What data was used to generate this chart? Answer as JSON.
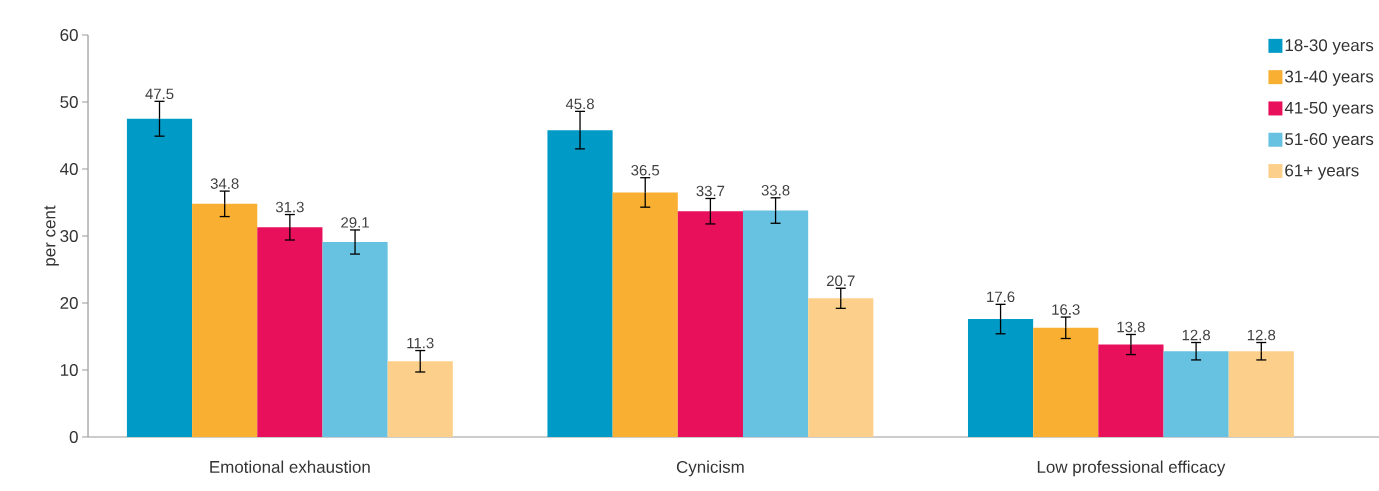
{
  "chart_data": {
    "type": "bar",
    "ylabel": "per cent",
    "categories": [
      "Emotional exhaustion",
      "Cynicism",
      "Low professional efficacy"
    ],
    "series": [
      {
        "name": "18-30 years",
        "color": "#009ac7",
        "values": [
          47.5,
          45.8,
          17.6
        ],
        "errors": [
          2.6,
          2.8,
          2.2
        ]
      },
      {
        "name": "31-40 years",
        "color": "#f9b032",
        "values": [
          34.8,
          36.5,
          16.3
        ],
        "errors": [
          1.9,
          2.2,
          1.6
        ]
      },
      {
        "name": "41-50 years",
        "color": "#e8105b",
        "values": [
          31.3,
          33.7,
          13.8
        ],
        "errors": [
          1.9,
          1.9,
          1.5
        ]
      },
      {
        "name": "51-60 years",
        "color": "#67c2e2",
        "values": [
          29.1,
          33.8,
          12.8
        ],
        "errors": [
          1.8,
          1.9,
          1.3
        ]
      },
      {
        "name": "61+ years",
        "color": "#fcd08a",
        "values": [
          11.3,
          20.7,
          12.8
        ],
        "errors": [
          1.6,
          1.5,
          1.3
        ]
      }
    ],
    "ylim": [
      0,
      60
    ],
    "yticks": [
      0,
      10,
      20,
      30,
      40,
      50,
      60
    ],
    "data_labels": true,
    "legend": "top right",
    "grid": false
  }
}
